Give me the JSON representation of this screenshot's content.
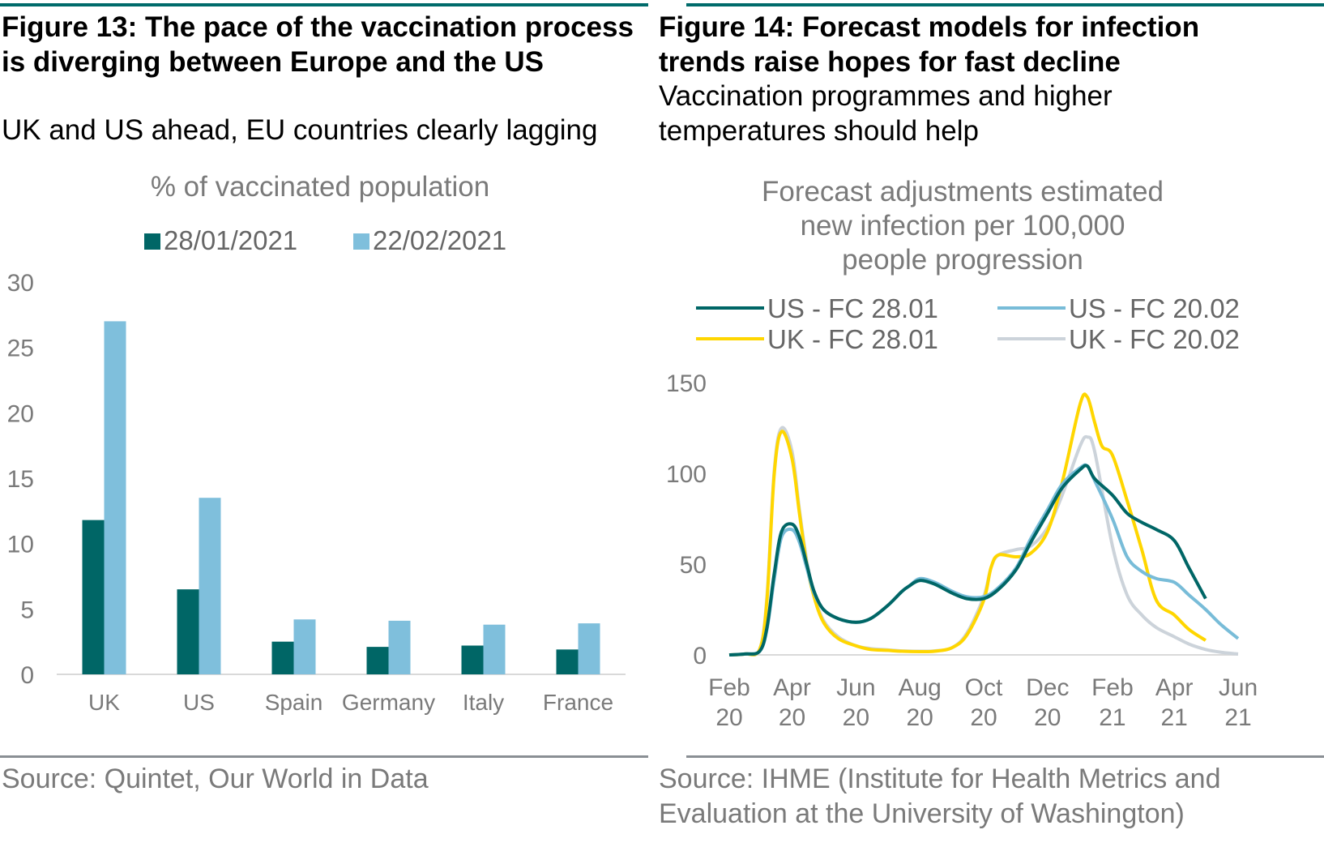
{
  "fig13": {
    "title": "Figure 13: The pace of the vaccination process is diverging between Europe and the US",
    "subtitle": "UK and US ahead, EU countries clearly lagging",
    "source": "Source: Quintet, Our World in Data"
  },
  "fig14": {
    "title": "Figure 14: Forecast models for infection trends raise hopes for fast decline",
    "subtitle": "Vaccination programmes and higher temperatures should help",
    "source": "Source: IHME (Institute for Health Metrics and Evaluation at the University of Washington)"
  },
  "chart_data": [
    {
      "type": "bar",
      "title": "% of vaccinated population",
      "categories": [
        "UK",
        "US",
        "Spain",
        "Germany",
        "Italy",
        "France"
      ],
      "series": [
        {
          "name": "28/01/2021",
          "color": "#006666",
          "values": [
            11.8,
            6.5,
            2.5,
            2.1,
            2.2,
            1.9
          ]
        },
        {
          "name": "22/02/2021",
          "color": "#7fbfdc",
          "values": [
            27.0,
            13.5,
            4.2,
            4.1,
            3.8,
            3.9
          ]
        }
      ],
      "ylim": [
        0,
        30
      ],
      "yticks": [
        "0",
        "5",
        "10",
        "15",
        "20",
        "25",
        "30"
      ],
      "legend_position": "top",
      "grid": false
    },
    {
      "type": "line",
      "title_lines": [
        "Forecast adjustments estimated",
        "new infection per 100,000",
        "people progression"
      ],
      "x_unit": "month",
      "xlim": [
        "2020-02",
        "2021-06"
      ],
      "xticks": [
        {
          "top": "Feb",
          "bottom": "20",
          "x": "2020-02"
        },
        {
          "top": "Apr",
          "bottom": "20",
          "x": "2020-04"
        },
        {
          "top": "Jun",
          "bottom": "20",
          "x": "2020-06"
        },
        {
          "top": "Aug",
          "bottom": "20",
          "x": "2020-08"
        },
        {
          "top": "Oct",
          "bottom": "20",
          "x": "2020-10"
        },
        {
          "top": "Dec",
          "bottom": "20",
          "x": "2020-12"
        },
        {
          "top": "Feb",
          "bottom": "21",
          "x": "2021-02"
        },
        {
          "top": "Apr",
          "bottom": "21",
          "x": "2021-04"
        },
        {
          "top": "Jun",
          "bottom": "21",
          "x": "2021-06"
        }
      ],
      "ylim": [
        0,
        150
      ],
      "yticks": [
        "0",
        "50",
        "100",
        "150"
      ],
      "legend_position": "top",
      "grid": false,
      "series": [
        {
          "name": "US - FC 28.01",
          "color": "#006666",
          "x": [
            "2020-02-01",
            "2020-02-16",
            "2020-03-01",
            "2020-03-08",
            "2020-03-15",
            "2020-03-22",
            "2020-04-01",
            "2020-04-08",
            "2020-04-15",
            "2020-04-22",
            "2020-05-01",
            "2020-05-15",
            "2020-06-01",
            "2020-06-15",
            "2020-07-01",
            "2020-07-15",
            "2020-07-22",
            "2020-08-01",
            "2020-08-15",
            "2020-09-01",
            "2020-09-15",
            "2020-10-01",
            "2020-10-15",
            "2020-11-01",
            "2020-11-15",
            "2020-12-01",
            "2020-12-15",
            "2021-01-01",
            "2021-01-08",
            "2021-01-15",
            "2021-02-01",
            "2021-02-15",
            "2021-03-01",
            "2021-03-15",
            "2021-04-01",
            "2021-04-15",
            "2021-05-01"
          ],
          "values": [
            0,
            0.5,
            2,
            15,
            45,
            68,
            72,
            65,
            50,
            35,
            25,
            20,
            18,
            20,
            27,
            35,
            38,
            41,
            39,
            34,
            31,
            31,
            36,
            47,
            62,
            78,
            92,
            102,
            104,
            97,
            88,
            78,
            73,
            69,
            63,
            48,
            31
          ]
        },
        {
          "name": "US - FC 20.02",
          "color": "#78bcd8",
          "x": [
            "2020-02-01",
            "2020-02-16",
            "2020-03-01",
            "2020-03-08",
            "2020-03-15",
            "2020-03-22",
            "2020-04-01",
            "2020-04-08",
            "2020-04-15",
            "2020-04-22",
            "2020-05-01",
            "2020-05-15",
            "2020-06-01",
            "2020-06-15",
            "2020-07-01",
            "2020-07-15",
            "2020-07-22",
            "2020-08-01",
            "2020-08-15",
            "2020-09-01",
            "2020-09-15",
            "2020-10-01",
            "2020-10-15",
            "2020-11-01",
            "2020-11-15",
            "2020-12-01",
            "2020-12-15",
            "2021-01-01",
            "2021-01-08",
            "2021-01-15",
            "2021-02-01",
            "2021-02-15",
            "2021-03-01",
            "2021-03-15",
            "2021-04-01",
            "2021-04-15",
            "2021-05-01",
            "2021-05-15",
            "2021-06-01"
          ],
          "values": [
            0,
            0.5,
            2,
            14,
            42,
            65,
            69,
            62,
            48,
            34,
            25,
            20,
            18,
            20,
            27,
            35,
            38,
            42,
            40,
            35,
            32,
            32,
            37,
            48,
            64,
            80,
            94,
            103,
            104,
            96,
            75,
            54,
            46,
            42,
            40,
            33,
            25,
            17,
            9
          ]
        },
        {
          "name": "UK - FC 28.01",
          "color": "#ffd600",
          "x": [
            "2020-02-01",
            "2020-02-16",
            "2020-03-01",
            "2020-03-08",
            "2020-03-15",
            "2020-03-22",
            "2020-04-01",
            "2020-04-08",
            "2020-04-15",
            "2020-04-22",
            "2020-05-01",
            "2020-05-15",
            "2020-06-01",
            "2020-06-15",
            "2020-07-01",
            "2020-07-15",
            "2020-08-01",
            "2020-08-15",
            "2020-09-01",
            "2020-09-15",
            "2020-10-01",
            "2020-10-08",
            "2020-10-15",
            "2020-11-01",
            "2020-11-15",
            "2020-12-01",
            "2020-12-15",
            "2021-01-01",
            "2021-01-08",
            "2021-01-15",
            "2021-01-22",
            "2021-02-01",
            "2021-02-15",
            "2021-03-01",
            "2021-03-15",
            "2021-04-01",
            "2021-04-15",
            "2021-05-01"
          ],
          "values": [
            0,
            0.5,
            3,
            30,
            100,
            123,
            108,
            78,
            50,
            32,
            18,
            9,
            5,
            3,
            2.5,
            2,
            1.8,
            2,
            4,
            11,
            30,
            48,
            55,
            54,
            56,
            68,
            95,
            138,
            142,
            128,
            115,
            110,
            85,
            58,
            30,
            22,
            14,
            8
          ]
        },
        {
          "name": "UK - FC 20.02",
          "color": "#ccd3da",
          "x": [
            "2020-02-01",
            "2020-02-16",
            "2020-03-01",
            "2020-03-08",
            "2020-03-15",
            "2020-03-22",
            "2020-04-01",
            "2020-04-08",
            "2020-04-15",
            "2020-04-22",
            "2020-05-01",
            "2020-05-15",
            "2020-06-01",
            "2020-06-15",
            "2020-07-01",
            "2020-07-15",
            "2020-08-01",
            "2020-08-15",
            "2020-09-01",
            "2020-09-15",
            "2020-10-01",
            "2020-10-08",
            "2020-10-15",
            "2020-11-01",
            "2020-11-15",
            "2020-12-01",
            "2020-12-15",
            "2021-01-01",
            "2021-01-08",
            "2021-01-15",
            "2021-02-01",
            "2021-02-15",
            "2021-03-01",
            "2021-03-15",
            "2021-04-01",
            "2021-04-15",
            "2021-05-01",
            "2021-05-15",
            "2021-06-01"
          ],
          "values": [
            0,
            0.5,
            3,
            32,
            102,
            125,
            112,
            80,
            52,
            33,
            19,
            10,
            5,
            3.5,
            2.8,
            2.2,
            2,
            2.2,
            4,
            12,
            32,
            48,
            55,
            58,
            60,
            70,
            88,
            115,
            120,
            112,
            60,
            33,
            22,
            15,
            10,
            6,
            3,
            1.5,
            0.5
          ]
        }
      ]
    }
  ]
}
